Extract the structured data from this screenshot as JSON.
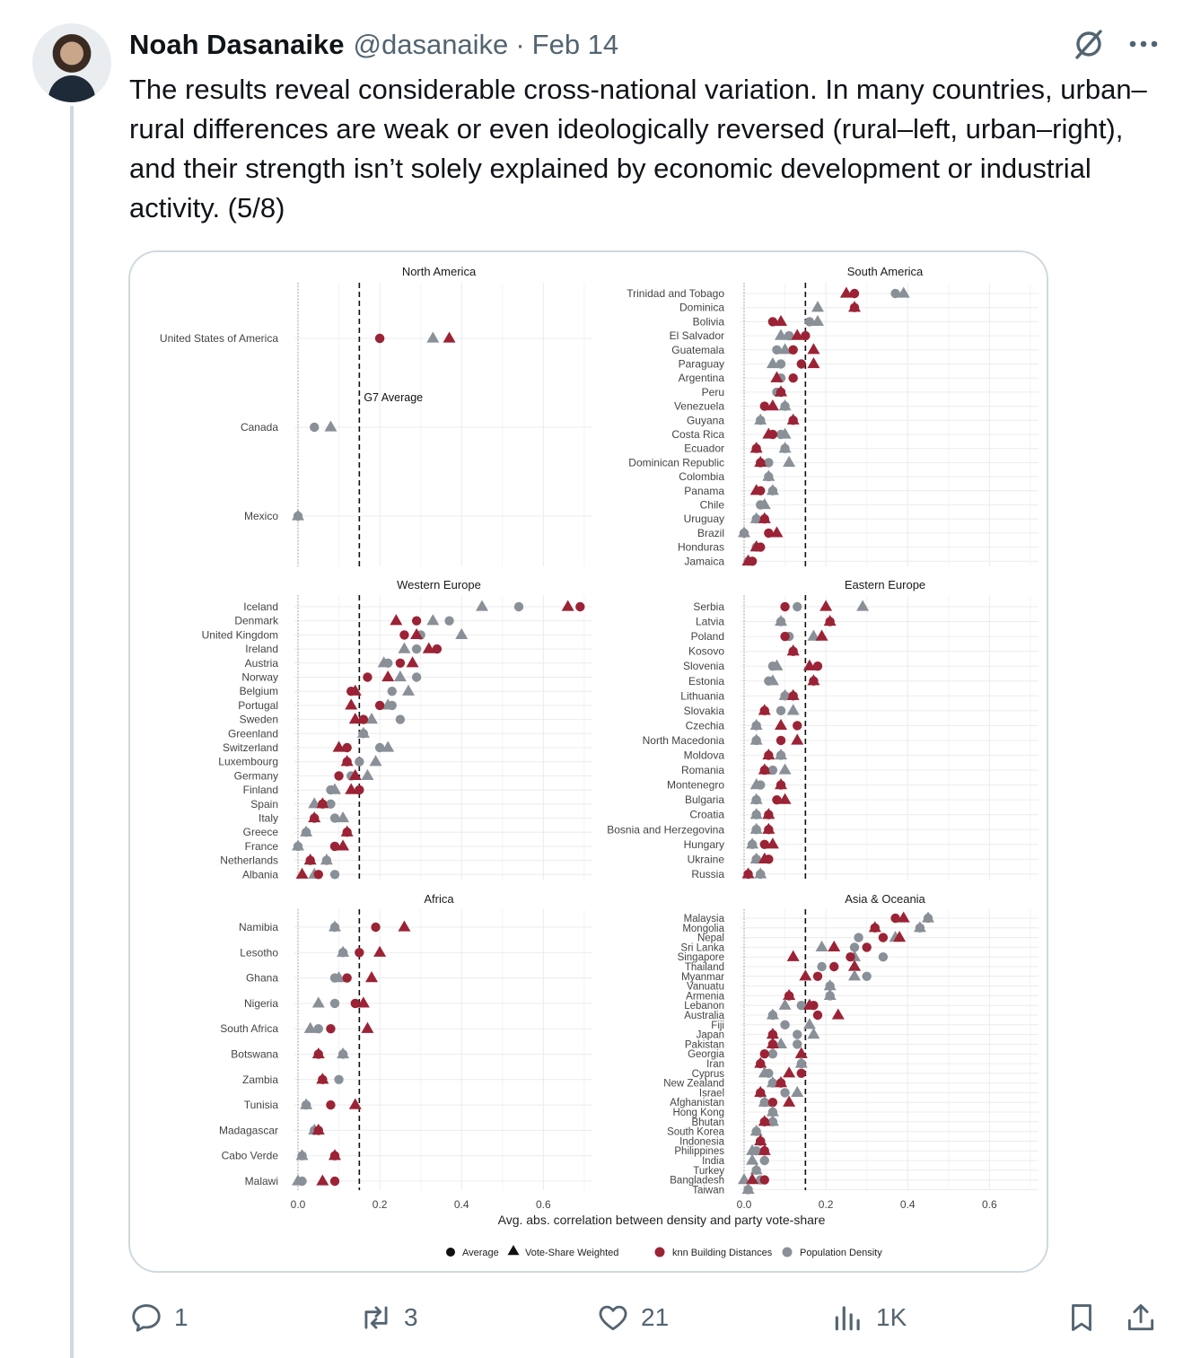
{
  "tweet": {
    "author_name": "Noah Dasanaike",
    "handle": "@dasanaike",
    "separator": "·",
    "date": "Feb 14",
    "text": "The results reveal considerable cross-national variation. In many countries, urban–rural differences are weak or even ideologically reversed (rural–left, urban–right), and their strength isn’t solely explained by economic development or industrial activity. (5/8)",
    "icons": {
      "grok": "grok-icon",
      "more": "more-icon",
      "reply": "reply-icon",
      "retweet": "retweet-icon",
      "like": "like-icon",
      "views": "views-icon",
      "bookmark": "bookmark-icon",
      "share": "share-icon"
    }
  },
  "actions": {
    "replies": "1",
    "retweets": "3",
    "likes": "21",
    "views": "1K"
  },
  "chart_data": {
    "type": "scatter",
    "xlabel": "Avg. abs. correlation between density and party vote-share",
    "xlim": [
      0,
      0.72
    ],
    "xticks": [
      0.0,
      0.2,
      0.4,
      0.6
    ],
    "xtick_labels": [
      "0.0",
      "0.2",
      "0.4",
      "0.6"
    ],
    "reference_line": {
      "value": 0.15,
      "label": "G7 Average"
    },
    "legend": {
      "placement": "bottom",
      "shape_items": [
        {
          "shape": "circle",
          "label": "Average"
        },
        {
          "shape": "triangle",
          "label": "Vote-Share Weighted"
        }
      ],
      "color_items": [
        {
          "color": "#9b2335",
          "label": "knn Building Distances"
        },
        {
          "color": "#8a9098",
          "label": "Population Density"
        }
      ]
    },
    "colors": {
      "knn": "#9b2335",
      "density": "#8a9098"
    },
    "panels": [
      {
        "title": "North America",
        "rows": [
          {
            "name": "United States of America",
            "dc": 0.2,
            "dt": 0.33,
            "kc": 0.2,
            "kt": 0.37
          },
          {
            "name": "Canada",
            "dc": 0.04,
            "dt": 0.08,
            "kc": null,
            "kt": null
          },
          {
            "name": "Mexico",
            "dc": 0.0,
            "dt": 0.0,
            "kc": null,
            "kt": null
          }
        ]
      },
      {
        "title": "South America",
        "rows": [
          {
            "name": "Trinidad and Tobago",
            "dc": 0.37,
            "dt": 0.39,
            "kc": 0.27,
            "kt": 0.25
          },
          {
            "name": "Dominica",
            "dc": null,
            "dt": 0.18,
            "kc": 0.27,
            "kt": 0.27
          },
          {
            "name": "Bolivia",
            "dc": 0.16,
            "dt": 0.18,
            "kc": 0.07,
            "kt": 0.09
          },
          {
            "name": "El Salvador",
            "dc": 0.11,
            "dt": 0.09,
            "kc": 0.15,
            "kt": 0.13
          },
          {
            "name": "Guatemala",
            "dc": 0.08,
            "dt": 0.1,
            "kc": 0.12,
            "kt": 0.17
          },
          {
            "name": "Paraguay",
            "dc": 0.09,
            "dt": 0.07,
            "kc": 0.14,
            "kt": 0.17
          },
          {
            "name": "Argentina",
            "dc": 0.09,
            "dt": 0.08,
            "kc": 0.12,
            "kt": 0.08
          },
          {
            "name": "Peru",
            "dc": 0.08,
            "dt": 0.09,
            "kc": 0.09,
            "kt": 0.09
          },
          {
            "name": "Venezuela",
            "dc": 0.1,
            "dt": 0.1,
            "kc": 0.05,
            "kt": 0.07
          },
          {
            "name": "Guyana",
            "dc": 0.04,
            "dt": 0.04,
            "kc": 0.12,
            "kt": 0.12
          },
          {
            "name": "Costa Rica",
            "dc": 0.09,
            "dt": 0.1,
            "kc": 0.07,
            "kt": 0.06
          },
          {
            "name": "Ecuador",
            "dc": 0.1,
            "dt": 0.1,
            "kc": 0.03,
            "kt": 0.03
          },
          {
            "name": "Dominican Republic",
            "dc": 0.06,
            "dt": 0.11,
            "kc": 0.04,
            "kt": 0.04
          },
          {
            "name": "Colombia",
            "dc": 0.06,
            "dt": 0.06,
            "kc": null,
            "kt": null
          },
          {
            "name": "Panama",
            "dc": 0.07,
            "dt": 0.07,
            "kc": 0.04,
            "kt": 0.03
          },
          {
            "name": "Chile",
            "dc": 0.04,
            "dt": 0.05,
            "kc": null,
            "kt": null
          },
          {
            "name": "Uruguay",
            "dc": 0.03,
            "dt": 0.03,
            "kc": 0.05,
            "kt": 0.05
          },
          {
            "name": "Brazil",
            "dc": 0.0,
            "dt": 0.0,
            "kc": 0.06,
            "kt": 0.08
          },
          {
            "name": "Honduras",
            "dc": 0.03,
            "dt": 0.03,
            "kc": 0.04,
            "kt": 0.03
          },
          {
            "name": "Jamaica",
            "dc": 0.01,
            "dt": 0.01,
            "kc": 0.02,
            "kt": 0.01
          }
        ]
      },
      {
        "title": "Western Europe",
        "rows": [
          {
            "name": "Iceland",
            "dc": 0.54,
            "dt": 0.45,
            "kc": 0.69,
            "kt": 0.66
          },
          {
            "name": "Denmark",
            "dc": 0.37,
            "dt": 0.33,
            "kc": 0.29,
            "kt": 0.24
          },
          {
            "name": "United Kingdom",
            "dc": 0.3,
            "dt": 0.4,
            "kc": 0.26,
            "kt": 0.29
          },
          {
            "name": "Ireland",
            "dc": 0.29,
            "dt": 0.26,
            "kc": 0.34,
            "kt": 0.32
          },
          {
            "name": "Austria",
            "dc": 0.22,
            "dt": 0.21,
            "kc": 0.25,
            "kt": 0.28
          },
          {
            "name": "Norway",
            "dc": 0.29,
            "dt": 0.25,
            "kc": 0.17,
            "kt": 0.22
          },
          {
            "name": "Belgium",
            "dc": 0.23,
            "dt": 0.27,
            "kc": 0.13,
            "kt": 0.14
          },
          {
            "name": "Portugal",
            "dc": 0.23,
            "dt": 0.22,
            "kc": 0.2,
            "kt": 0.13
          },
          {
            "name": "Sweden",
            "dc": 0.25,
            "dt": 0.18,
            "kc": 0.16,
            "kt": 0.14
          },
          {
            "name": "Greenland",
            "dc": 0.16,
            "dt": 0.16,
            "kc": null,
            "kt": null
          },
          {
            "name": "Switzerland",
            "dc": 0.2,
            "dt": 0.22,
            "kc": 0.12,
            "kt": 0.1
          },
          {
            "name": "Luxembourg",
            "dc": 0.15,
            "dt": 0.19,
            "kc": 0.12,
            "kt": 0.12
          },
          {
            "name": "Germany",
            "dc": 0.13,
            "dt": 0.17,
            "kc": 0.1,
            "kt": 0.14
          },
          {
            "name": "Finland",
            "dc": 0.08,
            "dt": 0.09,
            "kc": 0.15,
            "kt": 0.13
          },
          {
            "name": "Spain",
            "dc": 0.08,
            "dt": 0.04,
            "kc": 0.06,
            "kt": 0.06
          },
          {
            "name": "Italy",
            "dc": 0.09,
            "dt": 0.11,
            "kc": 0.04,
            "kt": 0.04
          },
          {
            "name": "Greece",
            "dc": 0.02,
            "dt": 0.02,
            "kc": 0.12,
            "kt": 0.12
          },
          {
            "name": "France",
            "dc": 0.0,
            "dt": 0.0,
            "kc": 0.09,
            "kt": 0.11
          },
          {
            "name": "Netherlands",
            "dc": 0.07,
            "dt": 0.07,
            "kc": 0.03,
            "kt": 0.03
          },
          {
            "name": "Albania",
            "dc": 0.09,
            "dt": 0.04,
            "kc": 0.05,
            "kt": 0.01
          }
        ]
      },
      {
        "title": "Eastern Europe",
        "rows": [
          {
            "name": "Serbia",
            "dc": 0.13,
            "dt": 0.29,
            "kc": 0.1,
            "kt": 0.2
          },
          {
            "name": "Latvia",
            "dc": 0.09,
            "dt": 0.09,
            "kc": 0.21,
            "kt": 0.21
          },
          {
            "name": "Poland",
            "dc": 0.11,
            "dt": 0.17,
            "kc": 0.1,
            "kt": 0.19
          },
          {
            "name": "Kosovo",
            "dc": 0.12,
            "dt": 0.12,
            "kc": 0.12,
            "kt": 0.12
          },
          {
            "name": "Slovenia",
            "dc": 0.07,
            "dt": 0.08,
            "kc": 0.18,
            "kt": 0.16
          },
          {
            "name": "Estonia",
            "dc": 0.06,
            "dt": 0.07,
            "kc": 0.17,
            "kt": 0.17
          },
          {
            "name": "Lithuania",
            "dc": 0.1,
            "dt": 0.1,
            "kc": 0.12,
            "kt": 0.12
          },
          {
            "name": "Slovakia",
            "dc": 0.09,
            "dt": 0.12,
            "kc": 0.05,
            "kt": 0.05
          },
          {
            "name": "Czechia",
            "dc": 0.03,
            "dt": 0.03,
            "kc": 0.13,
            "kt": 0.09
          },
          {
            "name": "North Macedonia",
            "dc": 0.03,
            "dt": 0.03,
            "kc": 0.09,
            "kt": 0.13
          },
          {
            "name": "Moldova",
            "dc": 0.09,
            "dt": 0.09,
            "kc": 0.06,
            "kt": 0.06
          },
          {
            "name": "Romania",
            "dc": 0.07,
            "dt": 0.1,
            "kc": 0.05,
            "kt": 0.05
          },
          {
            "name": "Montenegro",
            "dc": 0.04,
            "dt": 0.03,
            "kc": 0.09,
            "kt": 0.09
          },
          {
            "name": "Bulgaria",
            "dc": 0.03,
            "dt": 0.03,
            "kc": 0.08,
            "kt": 0.1
          },
          {
            "name": "Croatia",
            "dc": 0.03,
            "dt": 0.03,
            "kc": 0.06,
            "kt": 0.06
          },
          {
            "name": "Bosnia and Herzegovina",
            "dc": 0.03,
            "dt": 0.03,
            "kc": 0.06,
            "kt": 0.06
          },
          {
            "name": "Hungary",
            "dc": 0.02,
            "dt": 0.02,
            "kc": 0.05,
            "kt": 0.07
          },
          {
            "name": "Ukraine",
            "dc": 0.03,
            "dt": 0.03,
            "kc": 0.06,
            "kt": 0.05
          },
          {
            "name": "Russia",
            "dc": 0.04,
            "dt": 0.04,
            "kc": 0.01,
            "kt": 0.01
          }
        ]
      },
      {
        "title": "Africa",
        "rows": [
          {
            "name": "Namibia",
            "dc": 0.09,
            "dt": 0.09,
            "kc": 0.19,
            "kt": 0.26
          },
          {
            "name": "Lesotho",
            "dc": 0.11,
            "dt": 0.11,
            "kc": 0.15,
            "kt": 0.2
          },
          {
            "name": "Ghana",
            "dc": 0.09,
            "dt": 0.1,
            "kc": 0.12,
            "kt": 0.18
          },
          {
            "name": "Nigeria",
            "dc": 0.09,
            "dt": 0.05,
            "kc": 0.14,
            "kt": 0.16
          },
          {
            "name": "South Africa",
            "dc": 0.05,
            "dt": 0.03,
            "kc": 0.08,
            "kt": 0.17
          },
          {
            "name": "Botswana",
            "dc": 0.11,
            "dt": 0.11,
            "kc": 0.05,
            "kt": 0.05
          },
          {
            "name": "Zambia",
            "dc": 0.1,
            "dt": 0.06,
            "kc": 0.06,
            "kt": 0.06
          },
          {
            "name": "Tunisia",
            "dc": 0.02,
            "dt": 0.02,
            "kc": 0.08,
            "kt": 0.14
          },
          {
            "name": "Madagascar",
            "dc": 0.04,
            "dt": 0.04,
            "kc": 0.05,
            "kt": 0.05
          },
          {
            "name": "Cabo Verde",
            "dc": 0.01,
            "dt": 0.01,
            "kc": 0.09,
            "kt": 0.09
          },
          {
            "name": "Malawi",
            "dc": 0.01,
            "dt": 0.0,
            "kc": 0.09,
            "kt": 0.06
          }
        ]
      },
      {
        "title": "Asia & Oceania",
        "rows": [
          {
            "name": "Malaysia",
            "dc": 0.45,
            "dt": 0.45,
            "kc": 0.37,
            "kt": 0.39
          },
          {
            "name": "Mongolia",
            "dc": 0.43,
            "dt": 0.43,
            "kc": 0.32,
            "kt": 0.32
          },
          {
            "name": "Nepal",
            "dc": 0.28,
            "dt": 0.37,
            "kc": 0.34,
            "kt": 0.38
          },
          {
            "name": "Sri Lanka",
            "dc": 0.27,
            "dt": 0.19,
            "kc": 0.3,
            "kt": 0.22
          },
          {
            "name": "Singapore",
            "dc": 0.34,
            "dt": 0.27,
            "kc": 0.26,
            "kt": 0.12
          },
          {
            "name": "Thailand",
            "dc": 0.19,
            "dt": 0.27,
            "kc": 0.22,
            "kt": 0.27
          },
          {
            "name": "Myanmar",
            "dc": 0.3,
            "dt": 0.27,
            "kc": 0.18,
            "kt": 0.15
          },
          {
            "name": "Vanuatu",
            "dc": 0.21,
            "dt": 0.21,
            "kc": null,
            "kt": null
          },
          {
            "name": "Armenia",
            "dc": 0.21,
            "dt": 0.21,
            "kc": 0.11,
            "kt": 0.11
          },
          {
            "name": "Lebanon",
            "dc": 0.14,
            "dt": 0.1,
            "kc": 0.17,
            "kt": 0.16
          },
          {
            "name": "Australia",
            "dc": 0.07,
            "dt": 0.07,
            "kc": 0.18,
            "kt": 0.23
          },
          {
            "name": "Fiji",
            "dc": 0.1,
            "dt": 0.16,
            "kc": null,
            "kt": null
          },
          {
            "name": "Japan",
            "dc": 0.13,
            "dt": 0.17,
            "kc": 0.07,
            "kt": 0.07
          },
          {
            "name": "Pakistan",
            "dc": 0.13,
            "dt": 0.09,
            "kc": 0.07,
            "kt": 0.07
          },
          {
            "name": "Georgia",
            "dc": 0.07,
            "dt": 0.14,
            "kc": 0.05,
            "kt": 0.14
          },
          {
            "name": "Iran",
            "dc": 0.14,
            "dt": 0.14,
            "kc": 0.04,
            "kt": 0.04
          },
          {
            "name": "Cyprus",
            "dc": 0.06,
            "dt": 0.05,
            "kc": 0.14,
            "kt": 0.11
          },
          {
            "name": "New Zealand",
            "dc": 0.07,
            "dt": 0.07,
            "kc": 0.09,
            "kt": 0.09
          },
          {
            "name": "Israel",
            "dc": 0.1,
            "dt": 0.13,
            "kc": 0.04,
            "kt": 0.04
          },
          {
            "name": "Afghanistan",
            "dc": 0.05,
            "dt": 0.05,
            "kc": 0.07,
            "kt": 0.11
          },
          {
            "name": "Hong Kong",
            "dc": 0.07,
            "dt": 0.07,
            "kc": null,
            "kt": null
          },
          {
            "name": "Bhutan",
            "dc": 0.07,
            "dt": 0.07,
            "kc": 0.05,
            "kt": 0.05
          },
          {
            "name": "South Korea",
            "dc": 0.03,
            "dt": 0.03,
            "kc": null,
            "kt": null
          },
          {
            "name": "Indonesia",
            "dc": 0.04,
            "dt": 0.04,
            "kc": 0.04,
            "kt": 0.04
          },
          {
            "name": "Philippines",
            "dc": 0.03,
            "dt": 0.02,
            "kc": 0.05,
            "kt": 0.05
          },
          {
            "name": "India",
            "dc": 0.05,
            "dt": 0.02,
            "kc": null,
            "kt": null
          },
          {
            "name": "Turkey",
            "dc": 0.03,
            "dt": 0.03,
            "kc": null,
            "kt": null
          },
          {
            "name": "Bangladesh",
            "dc": 0.04,
            "dt": 0.0,
            "kc": 0.05,
            "kt": 0.02
          },
          {
            "name": "Taiwan",
            "dc": 0.01,
            "dt": 0.01,
            "kc": null,
            "kt": null
          }
        ]
      }
    ]
  }
}
